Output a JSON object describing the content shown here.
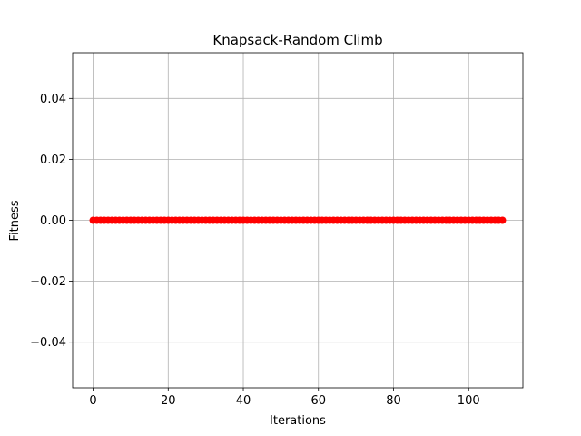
{
  "chart_data": {
    "type": "line",
    "title": "Knapsack-Random Climb",
    "xlabel": "Iterations",
    "ylabel": "Fitness",
    "xlim": [
      -5.45,
      114.45
    ],
    "ylim": [
      -0.055,
      0.055
    ],
    "grid": true,
    "x_ticks": [
      0,
      20,
      40,
      60,
      80,
      100
    ],
    "x_tick_labels": [
      "0",
      "20",
      "40",
      "60",
      "80",
      "100"
    ],
    "y_ticks": [
      -0.04,
      -0.02,
      0.0,
      0.02,
      0.04
    ],
    "y_tick_labels": [
      "−0.04",
      "−0.02",
      "0.00",
      "0.02",
      "0.04"
    ],
    "series": [
      {
        "color": "#ff0000",
        "marker": "circle",
        "x_start": 0,
        "x_end": 109,
        "x_step": 1,
        "y_constant": 0.0
      }
    ]
  }
}
